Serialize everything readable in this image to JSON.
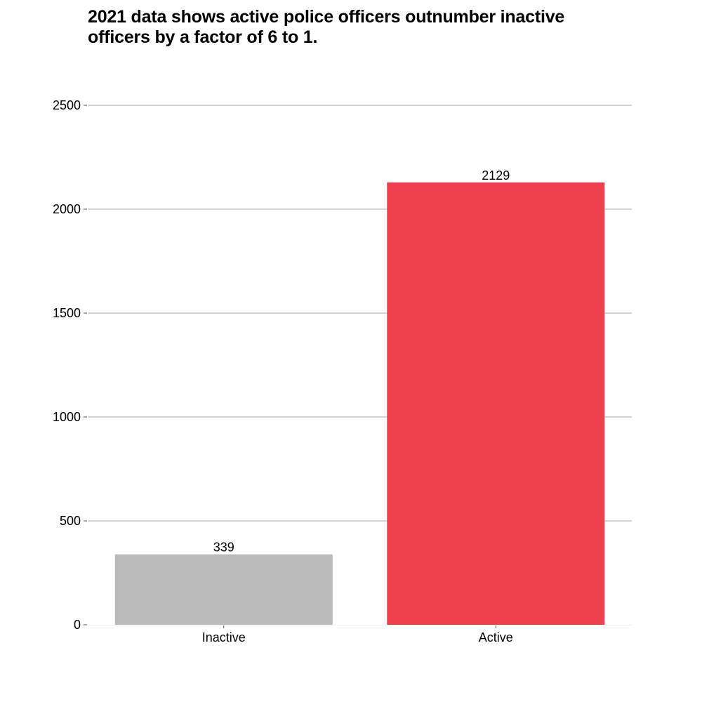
{
  "chart_data": {
    "type": "bar",
    "title": "2021 data shows active police officers outnumber inactive officers by a factor of 6 to 1.",
    "categories": [
      "Inactive",
      "Active"
    ],
    "values": [
      339,
      2129
    ],
    "value_labels": [
      "339",
      "2129"
    ],
    "colors": [
      "#bababa",
      "#ef4050"
    ],
    "ylim": [
      0,
      2500
    ],
    "yticks": [
      0,
      500,
      1000,
      1500,
      2000,
      2500
    ],
    "ytick_labels": [
      "0",
      "500",
      "1000",
      "1500",
      "2000",
      "2500"
    ],
    "grid": true,
    "grid_color": "#aaaaaa",
    "xlabel": "",
    "ylabel": ""
  }
}
